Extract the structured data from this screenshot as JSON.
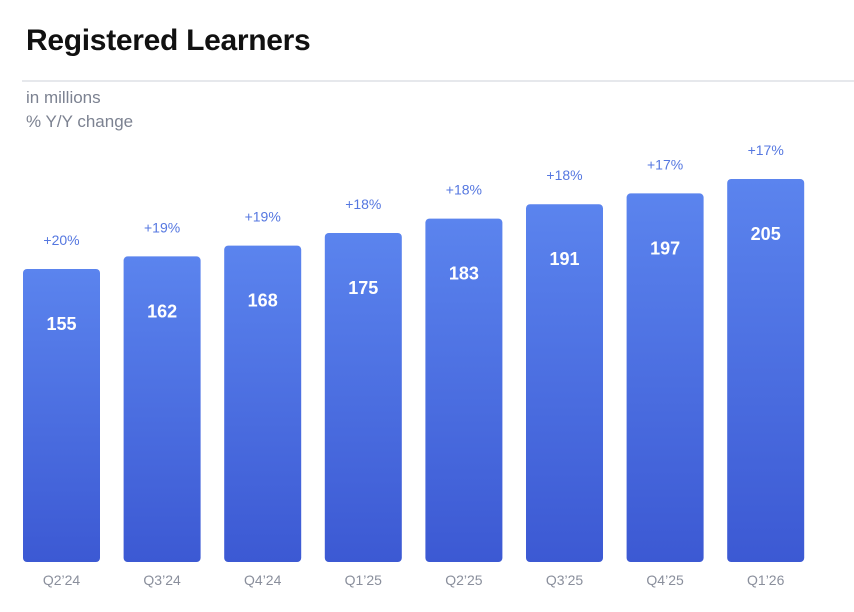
{
  "header": {
    "title": "Registered Learners",
    "subtitle_units": "in millions",
    "subtitle_change": "% Y/Y change"
  },
  "colors": {
    "bar_top": "#5b84ee",
    "bar_bottom": "#3c59d3",
    "pct_label": "#5577e0",
    "axis_label": "#8a8f9c"
  },
  "chart_data": {
    "type": "bar",
    "title": "Registered Learners",
    "subtitle": "in millions",
    "categories": [
      "Q2’24",
      "Q3’24",
      "Q4’24",
      "Q1’25",
      "Q2’25",
      "Q3’25",
      "Q4’25",
      "Q1’26"
    ],
    "series": [
      {
        "values": [
          155,
          162,
          168,
          175,
          183,
          191,
          197,
          205
        ]
      }
    ],
    "yoy_change": [
      "+20%",
      "+19%",
      "+19%",
      "+18%",
      "+18%",
      "+18%",
      "+17%",
      "+17%"
    ],
    "ylim": [
      0,
      205
    ],
    "grid": false,
    "legend": "none"
  }
}
